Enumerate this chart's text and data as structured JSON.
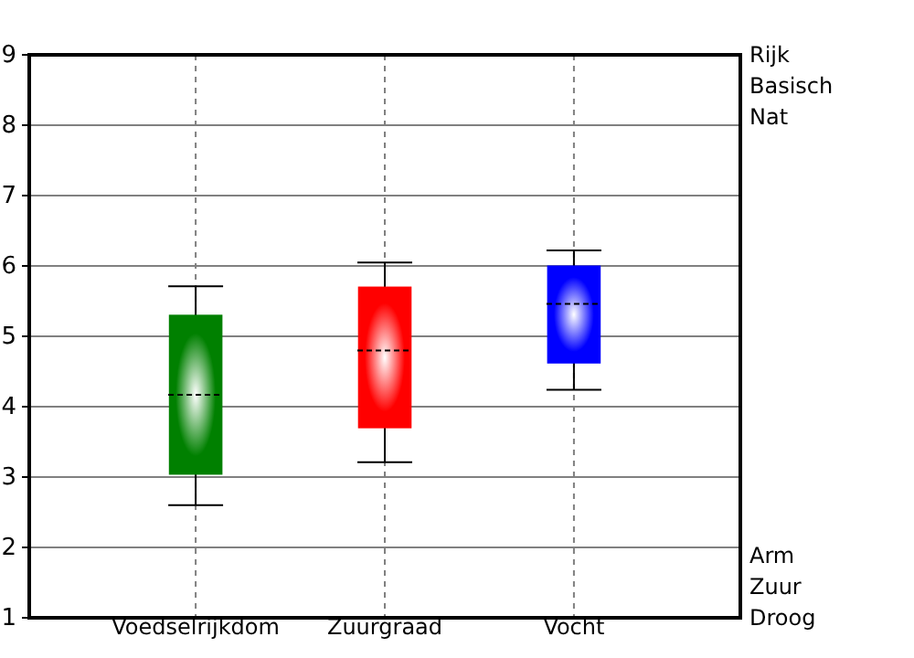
{
  "chart_data": {
    "type": "box",
    "categories": [
      "Voedselrijkdom",
      "Zuurgraad",
      "Vocht"
    ],
    "boxes": [
      {
        "low": 2.6,
        "q1": 3.05,
        "median": 4.17,
        "q3": 5.29,
        "high": 5.71
      },
      {
        "low": 3.21,
        "q1": 3.71,
        "median": 4.8,
        "q3": 5.69,
        "high": 6.05
      },
      {
        "low": 4.24,
        "q1": 4.63,
        "median": 5.46,
        "q3": 5.99,
        "high": 6.22
      }
    ],
    "colors": [
      "#008000",
      "#ff0000",
      "#0000ff"
    ],
    "ylim": [
      1,
      9
    ],
    "yticks": [
      1,
      2,
      3,
      4,
      5,
      6,
      7,
      8,
      9
    ],
    "grid": true,
    "annotations": [
      "Rijk",
      "Basisch",
      "Nat",
      "Arm",
      "Zuur",
      "Droog"
    ]
  }
}
